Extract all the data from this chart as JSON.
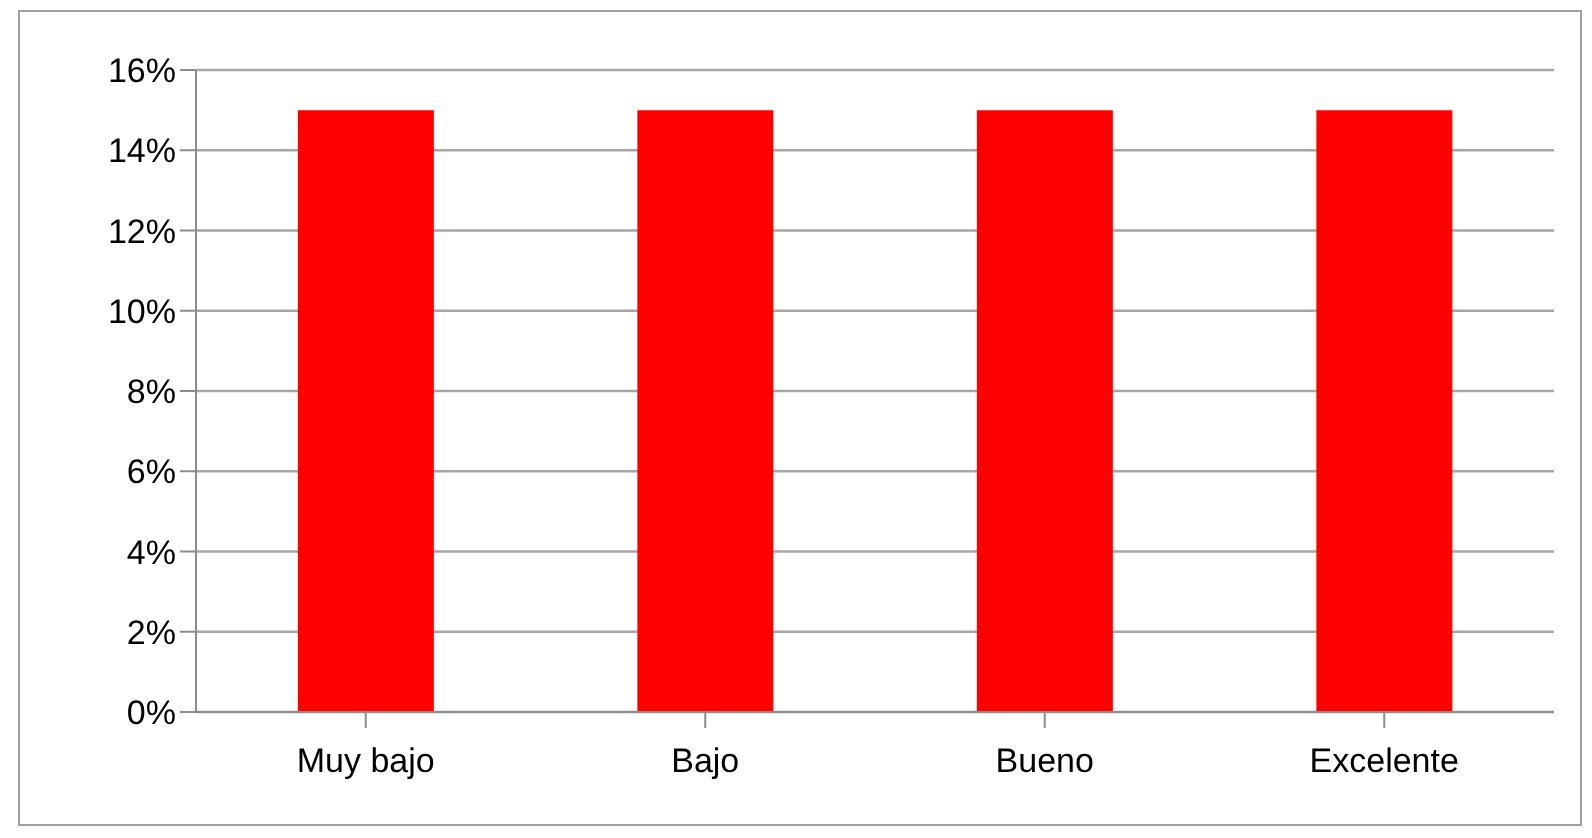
{
  "chart_data": {
    "type": "bar",
    "categories": [
      "Muy bajo",
      "Bajo",
      "Bueno",
      "Excelente"
    ],
    "values": [
      15,
      15,
      15,
      15
    ],
    "color": "#ff0000",
    "ylim": [
      0,
      16
    ],
    "yticks": [
      {
        "value": 0,
        "label": "0%"
      },
      {
        "value": 2,
        "label": "2%"
      },
      {
        "value": 4,
        "label": "4%"
      },
      {
        "value": 6,
        "label": "6%"
      },
      {
        "value": 8,
        "label": "8%"
      },
      {
        "value": 10,
        "label": "10%"
      },
      {
        "value": 12,
        "label": "12%"
      },
      {
        "value": 14,
        "label": "14%"
      },
      {
        "value": 16,
        "label": "16%"
      }
    ],
    "grid": "y",
    "legend": false
  }
}
